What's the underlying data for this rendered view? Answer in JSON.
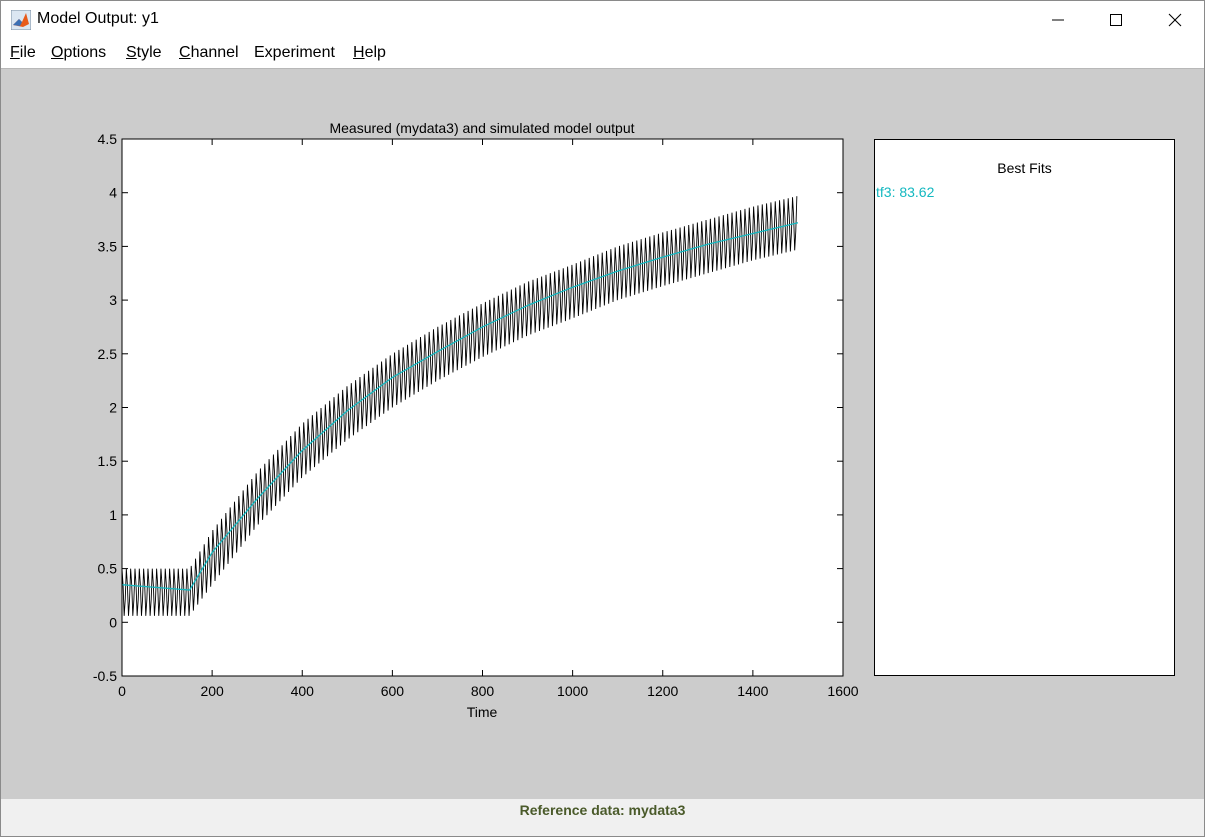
{
  "window": {
    "title": "Model Output: y1",
    "icons": [
      "matlab-icon",
      "minimize-icon",
      "maximize-icon",
      "close-icon"
    ]
  },
  "menu": [
    {
      "label": "File",
      "underline": "F",
      "rest": "ile"
    },
    {
      "label": "Options",
      "underline": "O",
      "rest": "ptions"
    },
    {
      "label": "Style",
      "underline": "S",
      "rest": "tyle"
    },
    {
      "label": "Channel",
      "underline": "C",
      "rest": "hannel"
    },
    {
      "label": "Experiment",
      "underline": "",
      "rest": "Experiment"
    },
    {
      "label": "Help",
      "underline": "H",
      "rest": "elp"
    }
  ],
  "chart_data": {
    "type": "line",
    "title": "Measured (mydata3) and simulated model output",
    "xlabel": "Time",
    "ylabel": "",
    "xlim": [
      0,
      1600
    ],
    "ylim": [
      -0.5,
      4.5
    ],
    "xticks": [
      "0",
      "200",
      "400",
      "600",
      "800",
      "1000",
      "1200",
      "1400",
      "1600"
    ],
    "yticks": [
      "-0.5",
      "0",
      "0.5",
      "1",
      "1.5",
      "2",
      "2.5",
      "3",
      "3.5",
      "4",
      "4.5"
    ],
    "series": [
      {
        "name": "mydata3",
        "color": "#000000",
        "pattern": "oscillating",
        "x_range": [
          0,
          1500
        ],
        "center_x": [
          0,
          150,
          200,
          300,
          400,
          500,
          600,
          700,
          800,
          900,
          1000,
          1100,
          1200,
          1300,
          1400,
          1500
        ],
        "center_y": [
          0.28,
          0.28,
          0.6,
          1.15,
          1.6,
          1.95,
          2.25,
          2.5,
          2.72,
          2.92,
          3.08,
          3.25,
          3.38,
          3.5,
          3.62,
          3.72
        ],
        "amplitude": [
          0.22,
          0.22,
          0.25,
          0.25,
          0.25,
          0.25,
          0.25,
          0.25,
          0.25,
          0.25,
          0.25,
          0.25,
          0.25,
          0.25,
          0.25,
          0.25
        ]
      },
      {
        "name": "tf3",
        "color": "#13b8c0",
        "x": [
          0,
          150,
          200,
          300,
          400,
          500,
          600,
          700,
          800,
          900,
          1000,
          1100,
          1200,
          1300,
          1400,
          1500
        ],
        "y": [
          0.35,
          0.3,
          0.65,
          1.15,
          1.6,
          1.97,
          2.28,
          2.52,
          2.75,
          2.95,
          3.12,
          3.27,
          3.4,
          3.52,
          3.62,
          3.72
        ]
      }
    ]
  },
  "best_fits": {
    "title": "Best Fits",
    "entries": [
      {
        "label": "tf3: 83.62",
        "color": "#13b8c0"
      }
    ]
  },
  "status": {
    "text": "Reference data:  mydata3"
  }
}
